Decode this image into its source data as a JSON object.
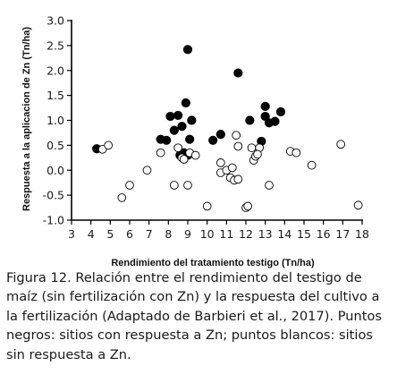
{
  "chart_data": {
    "type": "scatter",
    "xlabel": "Rendimiento del tratamiento testigo  (Tn/ha)",
    "ylabel": "Respuesta a la aplicacion de Zn (Tn/ha)",
    "xlim": [
      3,
      18
    ],
    "ylim": [
      -1.0,
      3.0
    ],
    "xticks": [
      "3",
      "4",
      "5",
      "6",
      "7",
      "8",
      "9",
      "10",
      "11",
      "12",
      "13",
      "14",
      "15",
      "16",
      "17",
      "18"
    ],
    "yticks": [
      "3.0",
      "2.5",
      "2.0",
      "1.5",
      "1.0",
      "0.5",
      "0.0",
      "-0.5",
      "-1.0"
    ],
    "grid": false,
    "series": [
      {
        "color": "#000000",
        "fill": "filled",
        "points": [
          [
            4.3,
            0.43
          ],
          [
            7.6,
            0.62
          ],
          [
            7.9,
            0.6
          ],
          [
            8.1,
            1.08
          ],
          [
            8.3,
            0.8
          ],
          [
            8.5,
            1.1
          ],
          [
            8.6,
            0.3
          ],
          [
            8.7,
            0.88
          ],
          [
            8.8,
            0.35
          ],
          [
            8.9,
            1.35
          ],
          [
            9.0,
            2.42
          ],
          [
            9.0,
            0.3
          ],
          [
            9.1,
            0.62
          ],
          [
            9.2,
            1.0
          ],
          [
            10.3,
            0.6
          ],
          [
            10.7,
            0.72
          ],
          [
            11.6,
            1.95
          ],
          [
            12.2,
            1.0
          ],
          [
            12.8,
            0.58
          ],
          [
            13.0,
            1.28
          ],
          [
            13.0,
            1.08
          ],
          [
            13.2,
            0.95
          ],
          [
            13.5,
            0.98
          ],
          [
            13.8,
            1.17
          ]
        ]
      },
      {
        "color": "#000000",
        "fill": "hollow",
        "points": [
          [
            4.6,
            0.42
          ],
          [
            4.9,
            0.5
          ],
          [
            5.6,
            -0.55
          ],
          [
            6.0,
            -0.3
          ],
          [
            6.9,
            0.0
          ],
          [
            7.6,
            0.35
          ],
          [
            8.3,
            -0.3
          ],
          [
            8.5,
            0.45
          ],
          [
            8.7,
            0.25
          ],
          [
            8.8,
            0.22
          ],
          [
            9.0,
            -0.3
          ],
          [
            9.1,
            0.35
          ],
          [
            9.4,
            0.3
          ],
          [
            10.0,
            -0.72
          ],
          [
            10.7,
            0.15
          ],
          [
            10.7,
            -0.05
          ],
          [
            11.0,
            0.0
          ],
          [
            11.2,
            -0.15
          ],
          [
            11.3,
            0.05
          ],
          [
            11.4,
            -0.2
          ],
          [
            11.5,
            0.7
          ],
          [
            11.6,
            0.48
          ],
          [
            11.6,
            -0.18
          ],
          [
            12.0,
            -0.75
          ],
          [
            12.1,
            -0.72
          ],
          [
            12.3,
            0.45
          ],
          [
            12.4,
            0.2
          ],
          [
            12.5,
            0.28
          ],
          [
            12.7,
            0.45
          ],
          [
            12.6,
            0.32
          ],
          [
            13.2,
            -0.3
          ],
          [
            14.3,
            0.38
          ],
          [
            14.6,
            0.35
          ],
          [
            15.4,
            0.1
          ],
          [
            16.9,
            0.52
          ],
          [
            17.8,
            -0.7
          ]
        ]
      }
    ]
  },
  "caption": {
    "label": "Figura 12",
    "text": ". Relación entre el rendimiento del testigo de maíz (sin fertilización con Zn) y la respuesta del cultivo a la fertilización (Adaptado de Barbieri et al., 2017). Puntos negros: sitios con respuesta a Zn; puntos blancos: sitios sin respuesta a Zn."
  }
}
